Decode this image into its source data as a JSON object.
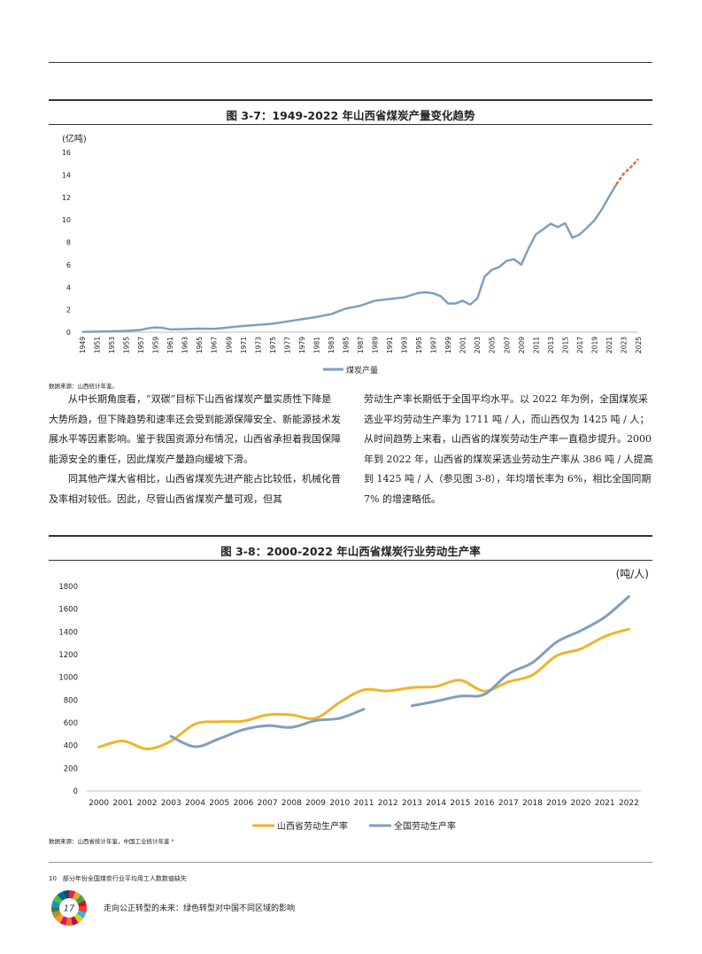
{
  "figure1": {
    "title": "图 3-7：1949-2022 年山西省煤炭产量变化趋势",
    "source": "数据来源：山西统计年鉴。"
  },
  "figure2": {
    "title": "图 3-8：2000-2022 年山西省煤炭行业劳动生产率",
    "source": "数据来源：山西省统计年鉴，中国工业统计年鉴 ⁸"
  },
  "text": {
    "left_p1": "从中长期角度看，“双碳”目标下山西省煤炭产量实质性下降是大势所趋，但下降趋势和速率还会受到能源保障安全、新能源技术发展水平等因素影响。鉴于我国资源分布情况，山西省承担着我国保障能源安全的重任，因此煤炭产量趋向缓坡下滑。",
    "left_p2": "同其他产煤大省相比，山西省煤炭先进产能占比较低，机械化普及率相对较低。因此，尽管山西省煤炭产量可观，但其",
    "right_p1": "劳动生产率长期低于全国平均水平。以 2022 年为例，全国煤炭采选业平均劳动生产率为 1711 吨 / 人，而山西仅为 1425 吨 / 人；从时间趋势上来看，山西省的煤炭劳动生产率一直稳步提升。2000 年到 2022 年，山西省的煤炭采选业劳动生产率从 386 吨 / 人提高到 1425 吨 / 人（参见图 3-8），年均增长率为 6%，相比全国同期 7% 的增速略低。"
  },
  "footnote": "10　部分年份全国煤炭行业平均用工人数数值缺失",
  "footer": {
    "title": "走向公正转型的未来：绿色转型对中国不同区域的影响",
    "logo_text": "17"
  },
  "chart_data": [
    {
      "type": "line",
      "unit_label": "(亿吨)",
      "legend": [
        "煤炭产量"
      ],
      "ylim": [
        0,
        16
      ],
      "yticks": [
        "0",
        "2",
        "4",
        "6",
        "8",
        "10",
        "12",
        "14",
        "16"
      ],
      "xlim": [
        1949,
        2025
      ],
      "xticks": [
        "1949",
        "1951",
        "1953",
        "1955",
        "1957",
        "1959",
        "1961",
        "1963",
        "1965",
        "1967",
        "1969",
        "1971",
        "1973",
        "1975",
        "1977",
        "1979",
        "1981",
        "1983",
        "1985",
        "1987",
        "1989",
        "1991",
        "1993",
        "1995",
        "1997",
        "1999",
        "2001",
        "2003",
        "2005",
        "2007",
        "2009",
        "2011",
        "2013",
        "2015",
        "2017",
        "2019",
        "2021",
        "2023",
        "2025"
      ],
      "colors": {
        "series": "#7f9fbf",
        "forecast": "#e07030"
      },
      "series": [
        {
          "name": "煤炭产量",
          "x": [
            1949,
            1951,
            1953,
            1955,
            1957,
            1958,
            1959,
            1960,
            1961,
            1963,
            1965,
            1967,
            1969,
            1971,
            1973,
            1975,
            1977,
            1979,
            1981,
            1983,
            1985,
            1987,
            1989,
            1991,
            1993,
            1995,
            1996,
            1997,
            1998,
            1999,
            2000,
            2001,
            2002,
            2003,
            2004,
            2005,
            2006,
            2007,
            2008,
            2009,
            2010,
            2011,
            2012,
            2013,
            2014,
            2015,
            2016,
            2017,
            2018,
            2019,
            2020,
            2021,
            2022
          ],
          "y": [
            0.03,
            0.05,
            0.08,
            0.12,
            0.2,
            0.35,
            0.42,
            0.38,
            0.25,
            0.28,
            0.32,
            0.3,
            0.42,
            0.55,
            0.65,
            0.75,
            0.95,
            1.15,
            1.35,
            1.6,
            2.1,
            2.35,
            2.8,
            2.95,
            3.1,
            3.5,
            3.55,
            3.45,
            3.2,
            2.55,
            2.55,
            2.8,
            2.45,
            3.0,
            4.95,
            5.55,
            5.8,
            6.35,
            6.5,
            6.0,
            7.45,
            8.7,
            9.15,
            9.65,
            9.35,
            9.7,
            8.4,
            8.7,
            9.3,
            9.95,
            10.9,
            12.05,
            13.15
          ]
        },
        {
          "name": "",
          "x": [
            2022,
            2023,
            2024,
            2025
          ],
          "y": [
            13.15,
            14.1,
            14.7,
            15.4
          ]
        }
      ]
    },
    {
      "type": "line",
      "unit_label": "(吨/人)",
      "ylim": [
        0,
        1800
      ],
      "yticks": [
        "0",
        "200",
        "400",
        "600",
        "800",
        "1000",
        "1200",
        "1400",
        "1600",
        "1800"
      ],
      "categories": [
        "2000",
        "2001",
        "2002",
        "2003",
        "2004",
        "2005",
        "2006",
        "2007",
        "2008",
        "2009",
        "2010",
        "2011",
        "2012",
        "2013",
        "2014",
        "2015",
        "2016",
        "2017",
        "2018",
        "2019",
        "2020",
        "2021",
        "2022"
      ],
      "colors": {
        "山西省劳动生产率": "#f0b429",
        "全国劳动生产率": "#7f9fbf"
      },
      "series": [
        {
          "name": "山西省劳动生产率",
          "values": [
            386,
            440,
            370,
            440,
            590,
            610,
            615,
            670,
            670,
            640,
            780,
            890,
            880,
            910,
            920,
            975,
            880,
            960,
            1020,
            1190,
            1250,
            1360,
            1425
          ]
        },
        {
          "name": "全国劳动生产率",
          "values": [
            null,
            null,
            null,
            480,
            390,
            460,
            540,
            575,
            560,
            620,
            640,
            720,
            null,
            750,
            790,
            835,
            850,
            1030,
            1130,
            1310,
            1410,
            1530,
            1711
          ]
        }
      ]
    }
  ]
}
